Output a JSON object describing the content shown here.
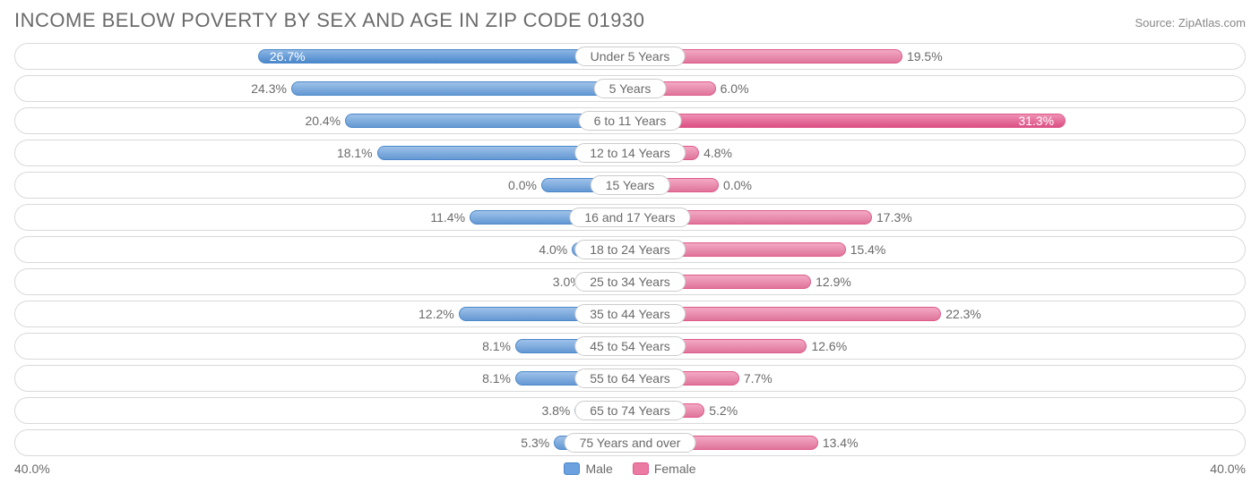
{
  "title": "INCOME BELOW POVERTY BY SEX AND AGE IN ZIP CODE 01930",
  "source": "Source: ZipAtlas.com",
  "axis_max": 40.0,
  "axis_label_left": "40.0%",
  "axis_label_right": "40.0%",
  "colors": {
    "male_fill": "#6aa1de",
    "male_border": "#4b87c9",
    "female_fill": "#ec7ba3",
    "female_border": "#de5a8a",
    "row_border": "#d9d9d9",
    "text": "#6a6a6a",
    "background": "#ffffff",
    "highlight_male_fill": "#4f8fd6",
    "highlight_female_fill": "#e7548b"
  },
  "legend": {
    "male": "Male",
    "female": "Female"
  },
  "data": [
    {
      "category": "Under 5 Years",
      "male": 26.7,
      "female": 19.5,
      "male_label": "26.7%",
      "female_label": "19.5%",
      "male_hi": true,
      "female_hi": false
    },
    {
      "category": "5 Years",
      "male": 24.3,
      "female": 6.0,
      "male_label": "24.3%",
      "female_label": "6.0%",
      "male_hi": false,
      "female_hi": false
    },
    {
      "category": "6 to 11 Years",
      "male": 20.4,
      "female": 31.3,
      "male_label": "20.4%",
      "female_label": "31.3%",
      "male_hi": false,
      "female_hi": true
    },
    {
      "category": "12 to 14 Years",
      "male": 18.1,
      "female": 4.8,
      "male_label": "18.1%",
      "female_label": "4.8%",
      "male_hi": false,
      "female_hi": false
    },
    {
      "category": "15 Years",
      "male": 0.0,
      "female": 0.0,
      "male_label": "0.0%",
      "female_label": "0.0%",
      "male_hi": false,
      "female_hi": false,
      "min_bar": true
    },
    {
      "category": "16 and 17 Years",
      "male": 11.4,
      "female": 17.3,
      "male_label": "11.4%",
      "female_label": "17.3%",
      "male_hi": false,
      "female_hi": false
    },
    {
      "category": "18 to 24 Years",
      "male": 4.0,
      "female": 15.4,
      "male_label": "4.0%",
      "female_label": "15.4%",
      "male_hi": false,
      "female_hi": false
    },
    {
      "category": "25 to 34 Years",
      "male": 3.0,
      "female": 12.9,
      "male_label": "3.0%",
      "female_label": "12.9%",
      "male_hi": false,
      "female_hi": false
    },
    {
      "category": "35 to 44 Years",
      "male": 12.2,
      "female": 22.3,
      "male_label": "12.2%",
      "female_label": "22.3%",
      "male_hi": false,
      "female_hi": false
    },
    {
      "category": "45 to 54 Years",
      "male": 8.1,
      "female": 12.6,
      "male_label": "8.1%",
      "female_label": "12.6%",
      "male_hi": false,
      "female_hi": false
    },
    {
      "category": "55 to 64 Years",
      "male": 8.1,
      "female": 7.7,
      "male_label": "8.1%",
      "female_label": "7.7%",
      "male_hi": false,
      "female_hi": false
    },
    {
      "category": "65 to 74 Years",
      "male": 3.8,
      "female": 5.2,
      "male_label": "3.8%",
      "female_label": "5.2%",
      "male_hi": false,
      "female_hi": false
    },
    {
      "category": "75 Years and over",
      "male": 5.3,
      "female": 13.4,
      "male_label": "5.3%",
      "female_label": "13.4%",
      "male_hi": false,
      "female_hi": false
    }
  ]
}
